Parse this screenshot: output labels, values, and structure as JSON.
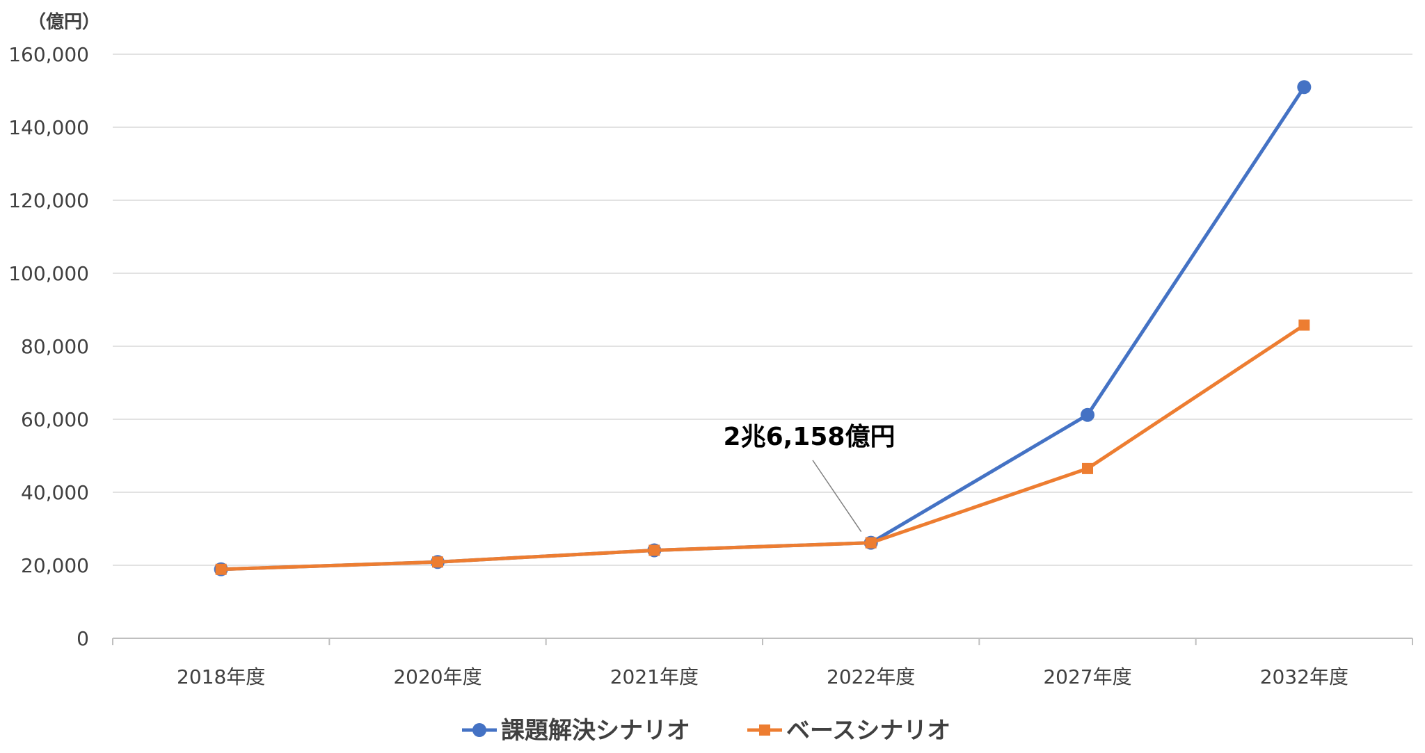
{
  "chart_data": {
    "type": "line",
    "unit_label": "（億円）",
    "categories": [
      "2018年度",
      "2020年度",
      "2021年度",
      "2022年度",
      "2027年度",
      "2032年度"
    ],
    "ylim": [
      0,
      160000
    ],
    "yticks": [
      0,
      20000,
      40000,
      60000,
      80000,
      100000,
      120000,
      140000,
      160000
    ],
    "ytick_labels": [
      "0",
      "20,000",
      "40,000",
      "60,000",
      "80,000",
      "100,000",
      "120,000",
      "140,000",
      "160,000"
    ],
    "grid": true,
    "legend_position": "bottom",
    "series": [
      {
        "name": "課題解決シナリオ",
        "color": "#4472C4",
        "marker": "circle",
        "values": [
          18900,
          20900,
          24100,
          26158,
          61200,
          151000
        ]
      },
      {
        "name": "ベースシナリオ",
        "color": "#ED7D31",
        "marker": "square",
        "values": [
          18900,
          20900,
          24100,
          26158,
          46500,
          85800
        ]
      }
    ],
    "annotations": [
      {
        "text": "2兆6,158億円",
        "category_index": 3,
        "series_index": 0
      }
    ]
  }
}
